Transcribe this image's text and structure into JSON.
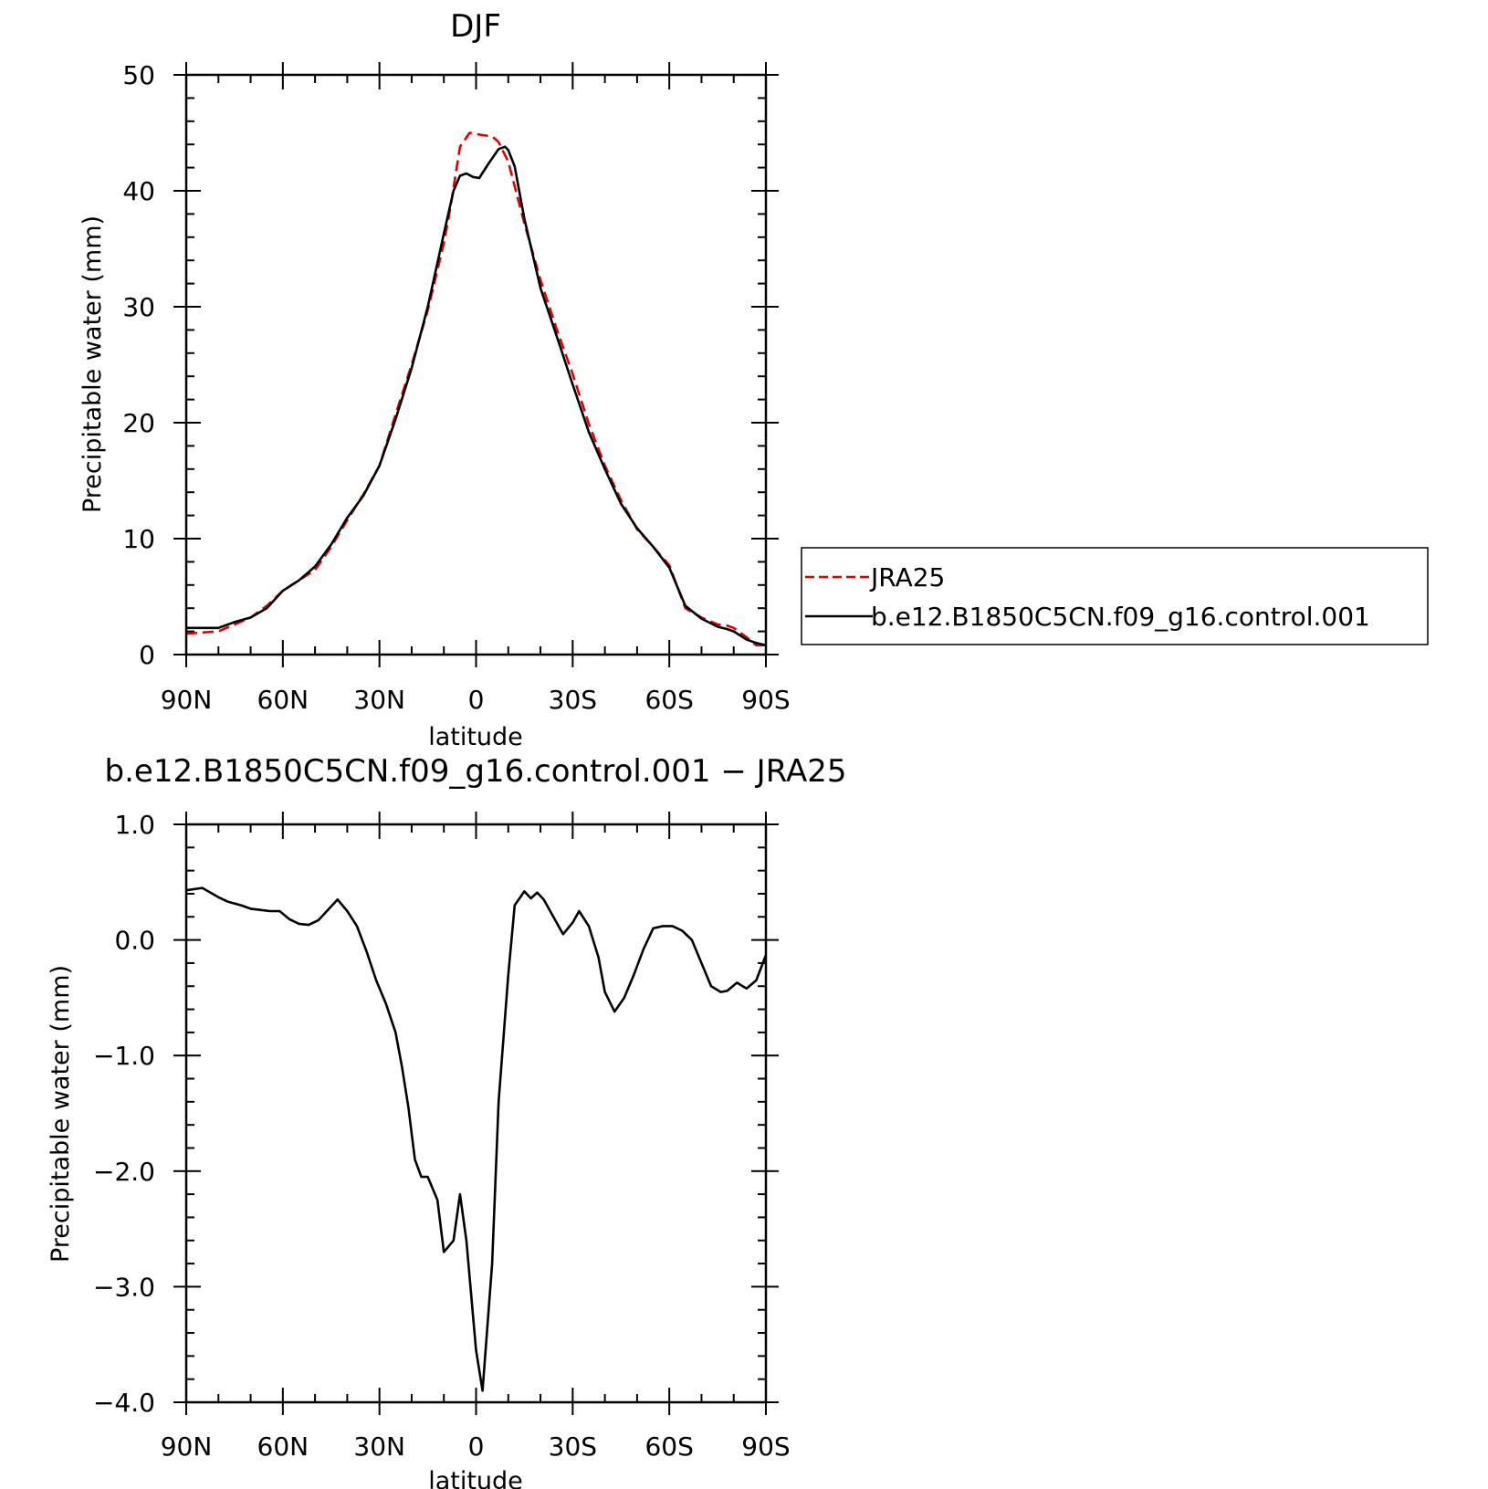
{
  "chart_data": [
    {
      "type": "line",
      "title": "DJF",
      "xlabel": "latitude",
      "ylabel": "Precipitable water (mm)",
      "xlim": [
        90,
        -90
      ],
      "ylim": [
        0,
        50
      ],
      "x_ticks": [
        90,
        60,
        30,
        0,
        -30,
        -60,
        -90
      ],
      "x_tick_labels": [
        "90N",
        "60N",
        "30N",
        "0",
        "30S",
        "60S",
        "90S"
      ],
      "y_ticks": [
        0,
        10,
        20,
        30,
        40,
        50
      ],
      "y_tick_labels": [
        "0",
        "10",
        "20",
        "30",
        "40",
        "50"
      ],
      "legend": {
        "position": "right"
      },
      "series": [
        {
          "name": "JRA25",
          "color": "#e00000",
          "dash": "dashed",
          "x": [
            90,
            80,
            75,
            70,
            65,
            60,
            55,
            50,
            45,
            40,
            35,
            30,
            25,
            20,
            15,
            10,
            8,
            5,
            2,
            0,
            -2,
            -5,
            -7,
            -10,
            -15,
            -20,
            -25,
            -30,
            -35,
            -40,
            -45,
            -50,
            -55,
            -60,
            -65,
            -70,
            -75,
            -78,
            -80,
            -84,
            -87,
            -90
          ],
          "values": [
            1.8,
            2.0,
            2.6,
            3.2,
            4.2,
            5.5,
            6.4,
            7.3,
            9.3,
            11.6,
            13.8,
            16.3,
            20.7,
            25.0,
            29.7,
            35.5,
            38.5,
            43.8,
            45.0,
            44.9,
            44.8,
            44.7,
            44.2,
            42.5,
            37.2,
            32.3,
            28.1,
            24.2,
            19.9,
            16.3,
            13.3,
            10.8,
            9.3,
            7.7,
            4.0,
            3.2,
            2.6,
            2.5,
            2.3,
            1.5,
            0.8,
            0.8
          ]
        },
        {
          "name": "b.e12.B1850C5CN.f09_g16.control.001",
          "color": "#000000",
          "dash": "solid",
          "x": [
            90,
            80,
            75,
            70,
            65,
            60,
            55,
            50,
            45,
            40,
            35,
            30,
            25,
            20,
            15,
            10,
            7,
            5,
            3,
            1,
            -1,
            -4,
            -7,
            -9,
            -10,
            -12,
            -15,
            -20,
            -25,
            -30,
            -35,
            -40,
            -45,
            -50,
            -55,
            -60,
            -65,
            -70,
            -75,
            -78,
            -80,
            -84,
            -87,
            -90
          ],
          "values": [
            2.3,
            2.3,
            2.8,
            3.2,
            4.0,
            5.5,
            6.4,
            7.6,
            9.5,
            11.8,
            13.7,
            16.3,
            20.3,
            24.7,
            30.0,
            36.3,
            40.0,
            41.3,
            41.5,
            41.2,
            41.1,
            42.4,
            43.6,
            43.8,
            43.5,
            42.1,
            37.6,
            31.6,
            27.5,
            23.3,
            19.2,
            16.0,
            13.0,
            10.9,
            9.3,
            7.5,
            4.2,
            3.1,
            2.4,
            2.2,
            2.0,
            1.3,
            1.0,
            0.8
          ]
        }
      ]
    },
    {
      "type": "line",
      "title": "b.e12.B1850C5CN.f09_g16.control.001 − JRA25",
      "xlabel": "latitude",
      "ylabel": "Precipitable water (mm)",
      "xlim": [
        90,
        -90
      ],
      "ylim": [
        -4.0,
        1.0
      ],
      "x_ticks": [
        90,
        60,
        30,
        0,
        -30,
        -60,
        -90
      ],
      "x_tick_labels": [
        "90N",
        "60N",
        "30N",
        "0",
        "30S",
        "60S",
        "90S"
      ],
      "y_ticks": [
        -4,
        -3,
        -2,
        -1,
        0,
        1
      ],
      "y_tick_labels": [
        "−4.0",
        "−3.0",
        "−2.0",
        "−1.0",
        "0.0",
        "1.0"
      ],
      "series": [
        {
          "color": "#000000",
          "dash": "solid",
          "x": [
            90,
            85,
            80,
            77,
            73,
            70,
            67,
            64,
            61,
            58,
            55,
            52,
            49,
            46,
            43,
            40,
            37,
            34,
            31,
            28,
            25,
            23,
            21,
            19,
            17,
            15,
            12,
            10,
            7,
            5,
            3,
            0,
            -2,
            -5,
            -7,
            -10,
            -12,
            -15,
            -17,
            -19,
            -21,
            -24,
            -27,
            -30,
            -32,
            -35,
            -38,
            -40,
            -43,
            -46,
            -49,
            -52,
            -55,
            -58,
            -61,
            -64,
            -67,
            -70,
            -73,
            -76,
            -78,
            -81,
            -84,
            -87,
            -90
          ],
          "values": [
            0.43,
            0.45,
            0.37,
            0.33,
            0.3,
            0.27,
            0.26,
            0.25,
            0.25,
            0.18,
            0.14,
            0.13,
            0.17,
            0.26,
            0.35,
            0.25,
            0.12,
            -0.1,
            -0.35,
            -0.55,
            -0.8,
            -1.1,
            -1.45,
            -1.9,
            -2.05,
            -2.05,
            -2.25,
            -2.7,
            -2.6,
            -2.2,
            -2.6,
            -3.55,
            -3.9,
            -2.8,
            -1.4,
            -0.3,
            0.3,
            0.42,
            0.36,
            0.41,
            0.35,
            0.2,
            0.05,
            0.15,
            0.25,
            0.12,
            -0.15,
            -0.45,
            -0.62,
            -0.5,
            -0.3,
            -0.08,
            0.1,
            0.12,
            0.12,
            0.08,
            0.0,
            -0.2,
            -0.4,
            -0.45,
            -0.44,
            -0.37,
            -0.42,
            -0.35,
            -0.13
          ]
        }
      ]
    }
  ]
}
